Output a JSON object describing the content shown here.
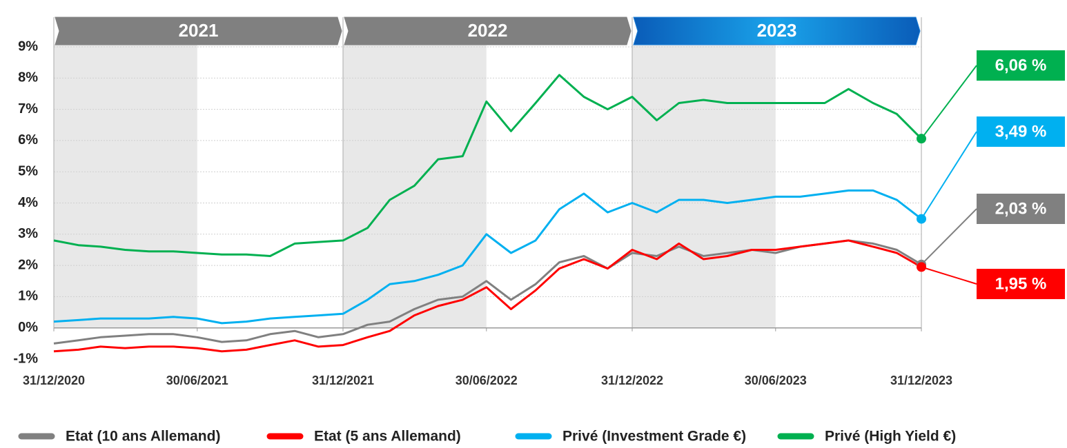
{
  "chart_data": {
    "type": "line",
    "x": [
      "2020-12-31",
      "2021-01-31",
      "2021-02-28",
      "2021-03-31",
      "2021-04-30",
      "2021-05-31",
      "2021-06-30",
      "2021-07-31",
      "2021-08-31",
      "2021-09-30",
      "2021-10-31",
      "2021-11-30",
      "2021-12-31",
      "2022-01-31",
      "2022-02-28",
      "2022-03-31",
      "2022-04-30",
      "2022-05-31",
      "2022-06-30",
      "2022-07-31",
      "2022-08-31",
      "2022-09-30",
      "2022-10-31",
      "2022-11-30",
      "2022-12-31",
      "2023-01-31",
      "2023-02-28",
      "2023-03-31",
      "2023-04-30",
      "2023-05-31",
      "2023-06-30",
      "2023-07-31",
      "2023-08-31",
      "2023-09-30",
      "2023-10-31",
      "2023-11-30",
      "2023-12-31"
    ],
    "xlim": [
      "2020-12-31",
      "2023-12-31"
    ],
    "xticks": [
      {
        "value": "2020-12-31",
        "label": "31/12/2020"
      },
      {
        "value": "2021-06-30",
        "label": "30/06/2021"
      },
      {
        "value": "2021-12-31",
        "label": "31/12/2021"
      },
      {
        "value": "2022-06-30",
        "label": "30/06/2022"
      },
      {
        "value": "2022-12-31",
        "label": "31/12/2022"
      },
      {
        "value": "2023-06-30",
        "label": "30/06/2023"
      },
      {
        "value": "2023-12-31",
        "label": "31/12/2023"
      }
    ],
    "ylim": [
      -1,
      9
    ],
    "yticks": [
      {
        "value": -1,
        "label": "-1%"
      },
      {
        "value": 0,
        "label": "0%"
      },
      {
        "value": 1,
        "label": "1%"
      },
      {
        "value": 2,
        "label": "2%"
      },
      {
        "value": 3,
        "label": "3%"
      },
      {
        "value": 4,
        "label": "4%"
      },
      {
        "value": 5,
        "label": "5%"
      },
      {
        "value": 6,
        "label": "6%"
      },
      {
        "value": 7,
        "label": "7%"
      },
      {
        "value": 8,
        "label": "8%"
      },
      {
        "value": 9,
        "label": "9%"
      }
    ],
    "grid": true,
    "periods": [
      {
        "label": "2021",
        "start": "2020-12-31",
        "end": "2021-12-31",
        "color": "#808080"
      },
      {
        "label": "2022",
        "start": "2021-12-31",
        "end": "2022-12-31",
        "color": "#808080"
      },
      {
        "label": "2023",
        "start": "2022-12-31",
        "end": "2023-12-31",
        "color": "#1e7fd6"
      }
    ],
    "series": [
      {
        "name": "Etat (10 ans Allemand)",
        "color": "#808080",
        "values": [
          -0.5,
          -0.4,
          -0.3,
          -0.25,
          -0.2,
          -0.2,
          -0.3,
          -0.45,
          -0.4,
          -0.2,
          -0.1,
          -0.3,
          -0.2,
          0.1,
          0.2,
          0.6,
          0.9,
          1.0,
          1.5,
          0.9,
          1.4,
          2.1,
          2.3,
          1.9,
          2.4,
          2.3,
          2.6,
          2.3,
          2.4,
          2.5,
          2.4,
          2.6,
          2.7,
          2.8,
          2.7,
          2.5,
          2.03
        ],
        "value_labels": [
          null,
          null,
          null,
          null,
          null,
          null,
          null,
          null,
          null,
          null,
          null,
          null,
          null,
          null,
          null,
          null,
          null,
          null,
          null,
          null,
          null,
          null,
          null,
          null,
          null,
          null,
          null,
          null,
          null,
          null,
          null,
          null,
          null,
          null,
          null,
          null,
          "2,03 %"
        ]
      },
      {
        "name": "Etat (5 ans Allemand)",
        "color": "#ff0000",
        "values": [
          -0.75,
          -0.7,
          -0.6,
          -0.65,
          -0.6,
          -0.6,
          -0.65,
          -0.75,
          -0.7,
          -0.55,
          -0.4,
          -0.6,
          -0.55,
          -0.3,
          -0.1,
          0.4,
          0.7,
          0.9,
          1.3,
          0.6,
          1.2,
          1.9,
          2.2,
          1.9,
          2.5,
          2.2,
          2.7,
          2.2,
          2.3,
          2.5,
          2.5,
          2.6,
          2.7,
          2.8,
          2.6,
          2.4,
          1.95
        ],
        "value_labels": [
          null,
          null,
          null,
          null,
          null,
          null,
          null,
          null,
          null,
          null,
          null,
          null,
          null,
          null,
          null,
          null,
          null,
          null,
          null,
          null,
          null,
          null,
          null,
          null,
          null,
          null,
          null,
          null,
          null,
          null,
          null,
          null,
          null,
          null,
          null,
          null,
          "1,95 %"
        ]
      },
      {
        "name": "Privé (Investment Grade €)",
        "color": "#00b0f0",
        "values": [
          0.2,
          0.25,
          0.3,
          0.3,
          0.3,
          0.35,
          0.3,
          0.15,
          0.2,
          0.3,
          0.35,
          0.4,
          0.45,
          0.9,
          1.4,
          1.5,
          1.7,
          2.0,
          3.0,
          2.4,
          2.8,
          3.8,
          4.3,
          3.7,
          4.0,
          3.7,
          4.1,
          4.1,
          4.0,
          4.1,
          4.2,
          4.2,
          4.3,
          4.4,
          4.4,
          4.1,
          3.49
        ],
        "value_labels": [
          null,
          null,
          null,
          null,
          null,
          null,
          null,
          null,
          null,
          null,
          null,
          null,
          null,
          null,
          null,
          null,
          null,
          null,
          null,
          null,
          null,
          null,
          null,
          null,
          null,
          null,
          null,
          null,
          null,
          null,
          null,
          null,
          null,
          null,
          null,
          null,
          "3,49 %"
        ]
      },
      {
        "name": "Privé (High Yield €)",
        "color": "#00b050",
        "values": [
          2.8,
          2.65,
          2.6,
          2.5,
          2.45,
          2.45,
          2.4,
          2.35,
          2.35,
          2.3,
          2.7,
          2.75,
          2.8,
          3.2,
          4.1,
          4.55,
          5.4,
          5.5,
          7.25,
          6.3,
          7.2,
          8.1,
          7.4,
          7.0,
          7.4,
          6.65,
          7.2,
          7.3,
          7.2,
          7.2,
          7.2,
          7.2,
          7.2,
          7.65,
          7.2,
          6.85,
          6.06
        ],
        "value_labels": [
          null,
          null,
          null,
          null,
          null,
          null,
          null,
          null,
          null,
          null,
          null,
          null,
          null,
          null,
          null,
          null,
          null,
          null,
          null,
          null,
          null,
          null,
          null,
          null,
          null,
          null,
          null,
          null,
          null,
          null,
          null,
          null,
          null,
          null,
          null,
          null,
          "6,06 %"
        ]
      }
    ]
  }
}
